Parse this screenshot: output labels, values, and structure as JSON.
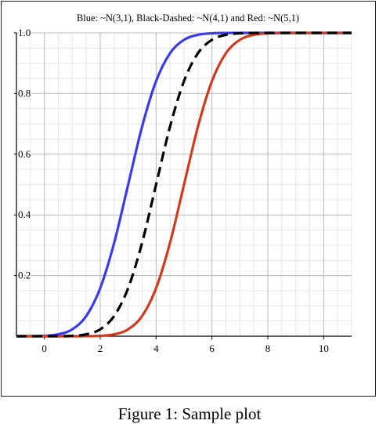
{
  "caption": "Figure 1: Sample plot",
  "chart_data": {
    "type": "line",
    "title": "Blue: ~N(3,1), Black-Dashed: ~N(4,1) and Red: ~N(5,1)",
    "xlabel": "",
    "ylabel": "",
    "xlim": [
      -1,
      11
    ],
    "ylim": [
      0,
      1
    ],
    "x_ticks": [
      0,
      2,
      4,
      6,
      8,
      10
    ],
    "y_ticks": [
      0.2,
      0.4,
      0.6,
      0.8,
      1.0
    ],
    "grid": true,
    "x": [
      -1,
      -0.5,
      0,
      0.5,
      1,
      1.5,
      2,
      2.5,
      3,
      3.5,
      4,
      4.5,
      5,
      5.5,
      6,
      6.5,
      7,
      7.5,
      8,
      8.5,
      9,
      9.5,
      10,
      10.5,
      11
    ],
    "series": [
      {
        "color": "#3a3aee",
        "style": "solid",
        "values": [
          3e-05,
          0.00023,
          0.0013,
          0.0062,
          0.0228,
          0.0668,
          0.1587,
          0.3085,
          0.5,
          0.6915,
          0.8413,
          0.9332,
          0.9772,
          0.9938,
          0.9987,
          0.9998,
          1.0,
          1.0,
          1.0,
          1.0,
          1.0,
          1.0,
          1.0,
          1.0,
          1.0
        ]
      },
      {
        "color": "#000000",
        "style": "dashed",
        "values": [
          0.0,
          3e-05,
          3e-05,
          0.00023,
          0.0013,
          0.0062,
          0.0228,
          0.0668,
          0.1587,
          0.3085,
          0.5,
          0.6915,
          0.8413,
          0.9332,
          0.9772,
          0.9938,
          0.9987,
          0.9998,
          1.0,
          1.0,
          1.0,
          1.0,
          1.0,
          1.0,
          1.0
        ]
      },
      {
        "color": "#d23a1e",
        "style": "solid",
        "values": [
          0.0,
          0.0,
          0.0,
          3e-05,
          3e-05,
          0.00023,
          0.0013,
          0.0062,
          0.0228,
          0.0668,
          0.1587,
          0.3085,
          0.5,
          0.6915,
          0.8413,
          0.9332,
          0.9772,
          0.9938,
          0.9987,
          0.9998,
          1.0,
          1.0,
          1.0,
          1.0,
          1.0
        ]
      }
    ]
  }
}
